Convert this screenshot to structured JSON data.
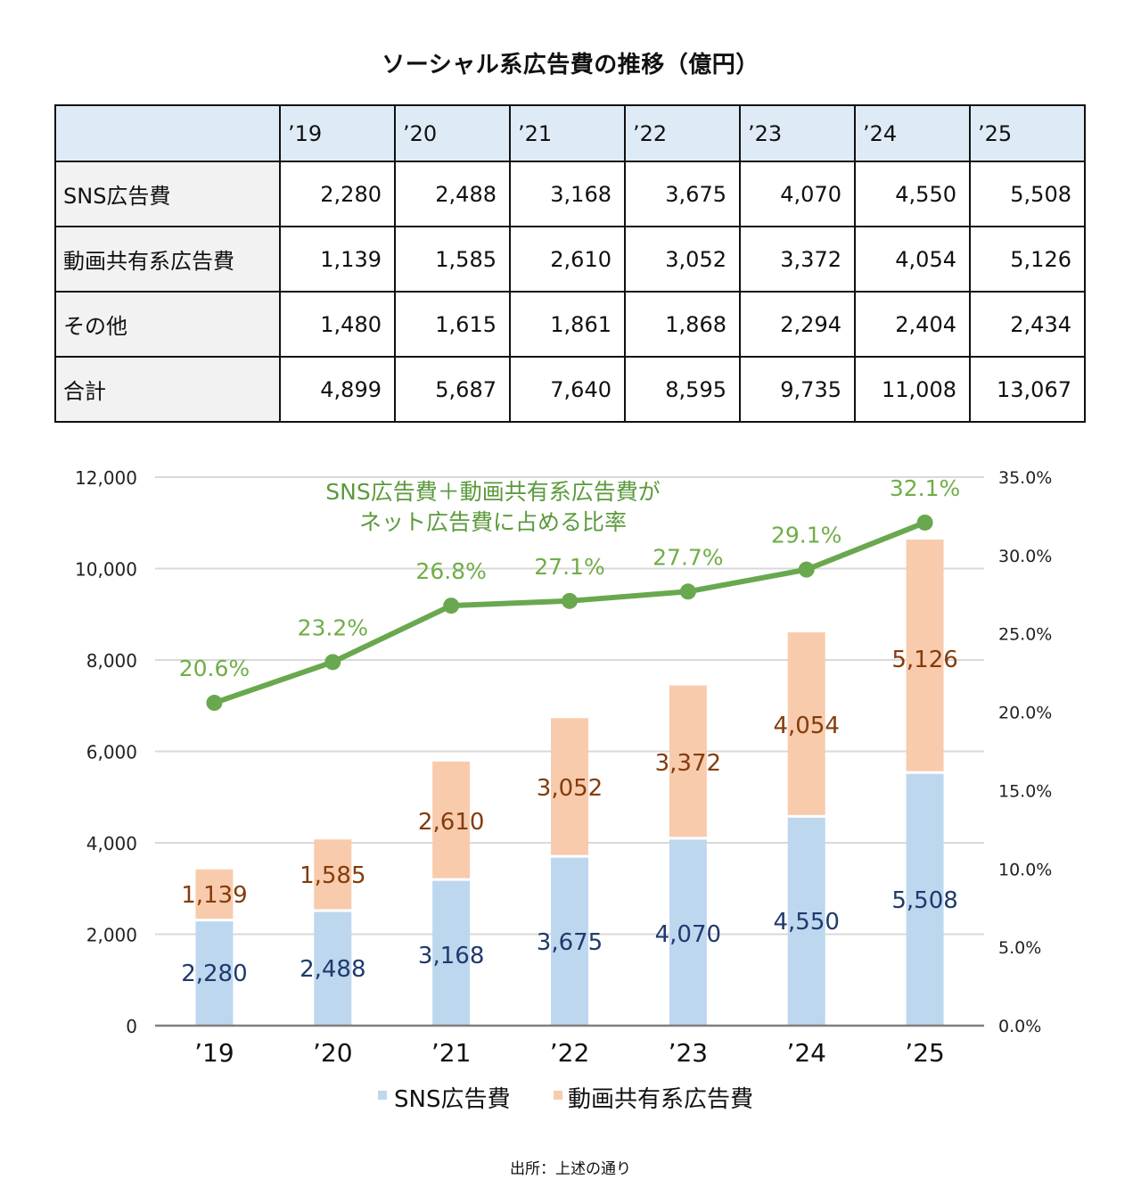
{
  "title": "ソーシャル系広告費の推移（億円）",
  "table": {
    "headers": [
      "",
      "’19",
      "’20",
      "’21",
      "’22",
      "’23",
      "’24",
      "’25"
    ],
    "rows": [
      {
        "label": "SNS広告費",
        "values": [
          "2,280",
          "2,488",
          "3,168",
          "3,675",
          "4,070",
          "4,550",
          "5,508"
        ]
      },
      {
        "label": "動画共有系広告費",
        "values": [
          "1,139",
          "1,585",
          "2,610",
          "3,052",
          "3,372",
          "4,054",
          "5,126"
        ]
      },
      {
        "label": "その他",
        "values": [
          "1,480",
          "1,615",
          "1,861",
          "1,868",
          "2,294",
          "2,404",
          "2,434"
        ]
      },
      {
        "label": "合計",
        "values": [
          "4,899",
          "5,687",
          "7,640",
          "8,595",
          "9,735",
          "11,008",
          "13,067"
        ]
      }
    ]
  },
  "chart_data": {
    "type": "bar",
    "stacked": true,
    "categories": [
      "’19",
      "’20",
      "’21",
      "’22",
      "’23",
      "’24",
      "’25"
    ],
    "series": [
      {
        "name": "SNS広告費",
        "axis": "left",
        "kind": "bar",
        "color": "#bdd7ee",
        "label_color": "#1f3a6e",
        "values": [
          2280,
          2488,
          3168,
          3675,
          4070,
          4550,
          5508
        ],
        "labels": [
          "2,280",
          "2,488",
          "3,168",
          "3,675",
          "4,070",
          "4,550",
          "5,508"
        ]
      },
      {
        "name": "動画共有系広告費",
        "axis": "left",
        "kind": "bar",
        "color": "#f8cbad",
        "label_color": "#843c0c",
        "values": [
          1139,
          1585,
          2610,
          3052,
          3372,
          4054,
          5126
        ],
        "labels": [
          "1,139",
          "1,585",
          "2,610",
          "3,052",
          "3,372",
          "4,054",
          "5,126"
        ]
      },
      {
        "name": "SNS広告費＋動画共有系広告費がネット広告費に占める比率",
        "axis": "right",
        "kind": "line",
        "color": "#6aa84f",
        "label_color": "#70ad47",
        "values": [
          20.6,
          23.2,
          26.8,
          27.1,
          27.7,
          29.1,
          32.1
        ],
        "labels": [
          "20.6%",
          "23.2%",
          "26.8%",
          "27.1%",
          "27.7%",
          "29.1%",
          "32.1%"
        ]
      }
    ],
    "annotation": [
      "SNS広告費＋動画共有系広告費が",
      "ネット広告費に占める比率"
    ],
    "y_left": {
      "range": [
        0,
        12000
      ],
      "ticks": [
        0,
        2000,
        4000,
        6000,
        8000,
        10000,
        12000
      ],
      "tick_labels": [
        "0",
        "2,000",
        "4,000",
        "6,000",
        "8,000",
        "10,000",
        "12,000"
      ]
    },
    "y_right": {
      "range": [
        0,
        35
      ],
      "ticks": [
        0,
        5,
        10,
        15,
        20,
        25,
        30,
        35
      ],
      "tick_labels": [
        "0.0%",
        "5.0%",
        "10.0%",
        "15.0%",
        "20.0%",
        "25.0%",
        "30.0%",
        "35.0%"
      ]
    },
    "grid": true,
    "legend": {
      "position": "bottom",
      "items": [
        "SNS広告費",
        "動画共有系広告費"
      ]
    }
  },
  "source": "出所：上述の通り"
}
